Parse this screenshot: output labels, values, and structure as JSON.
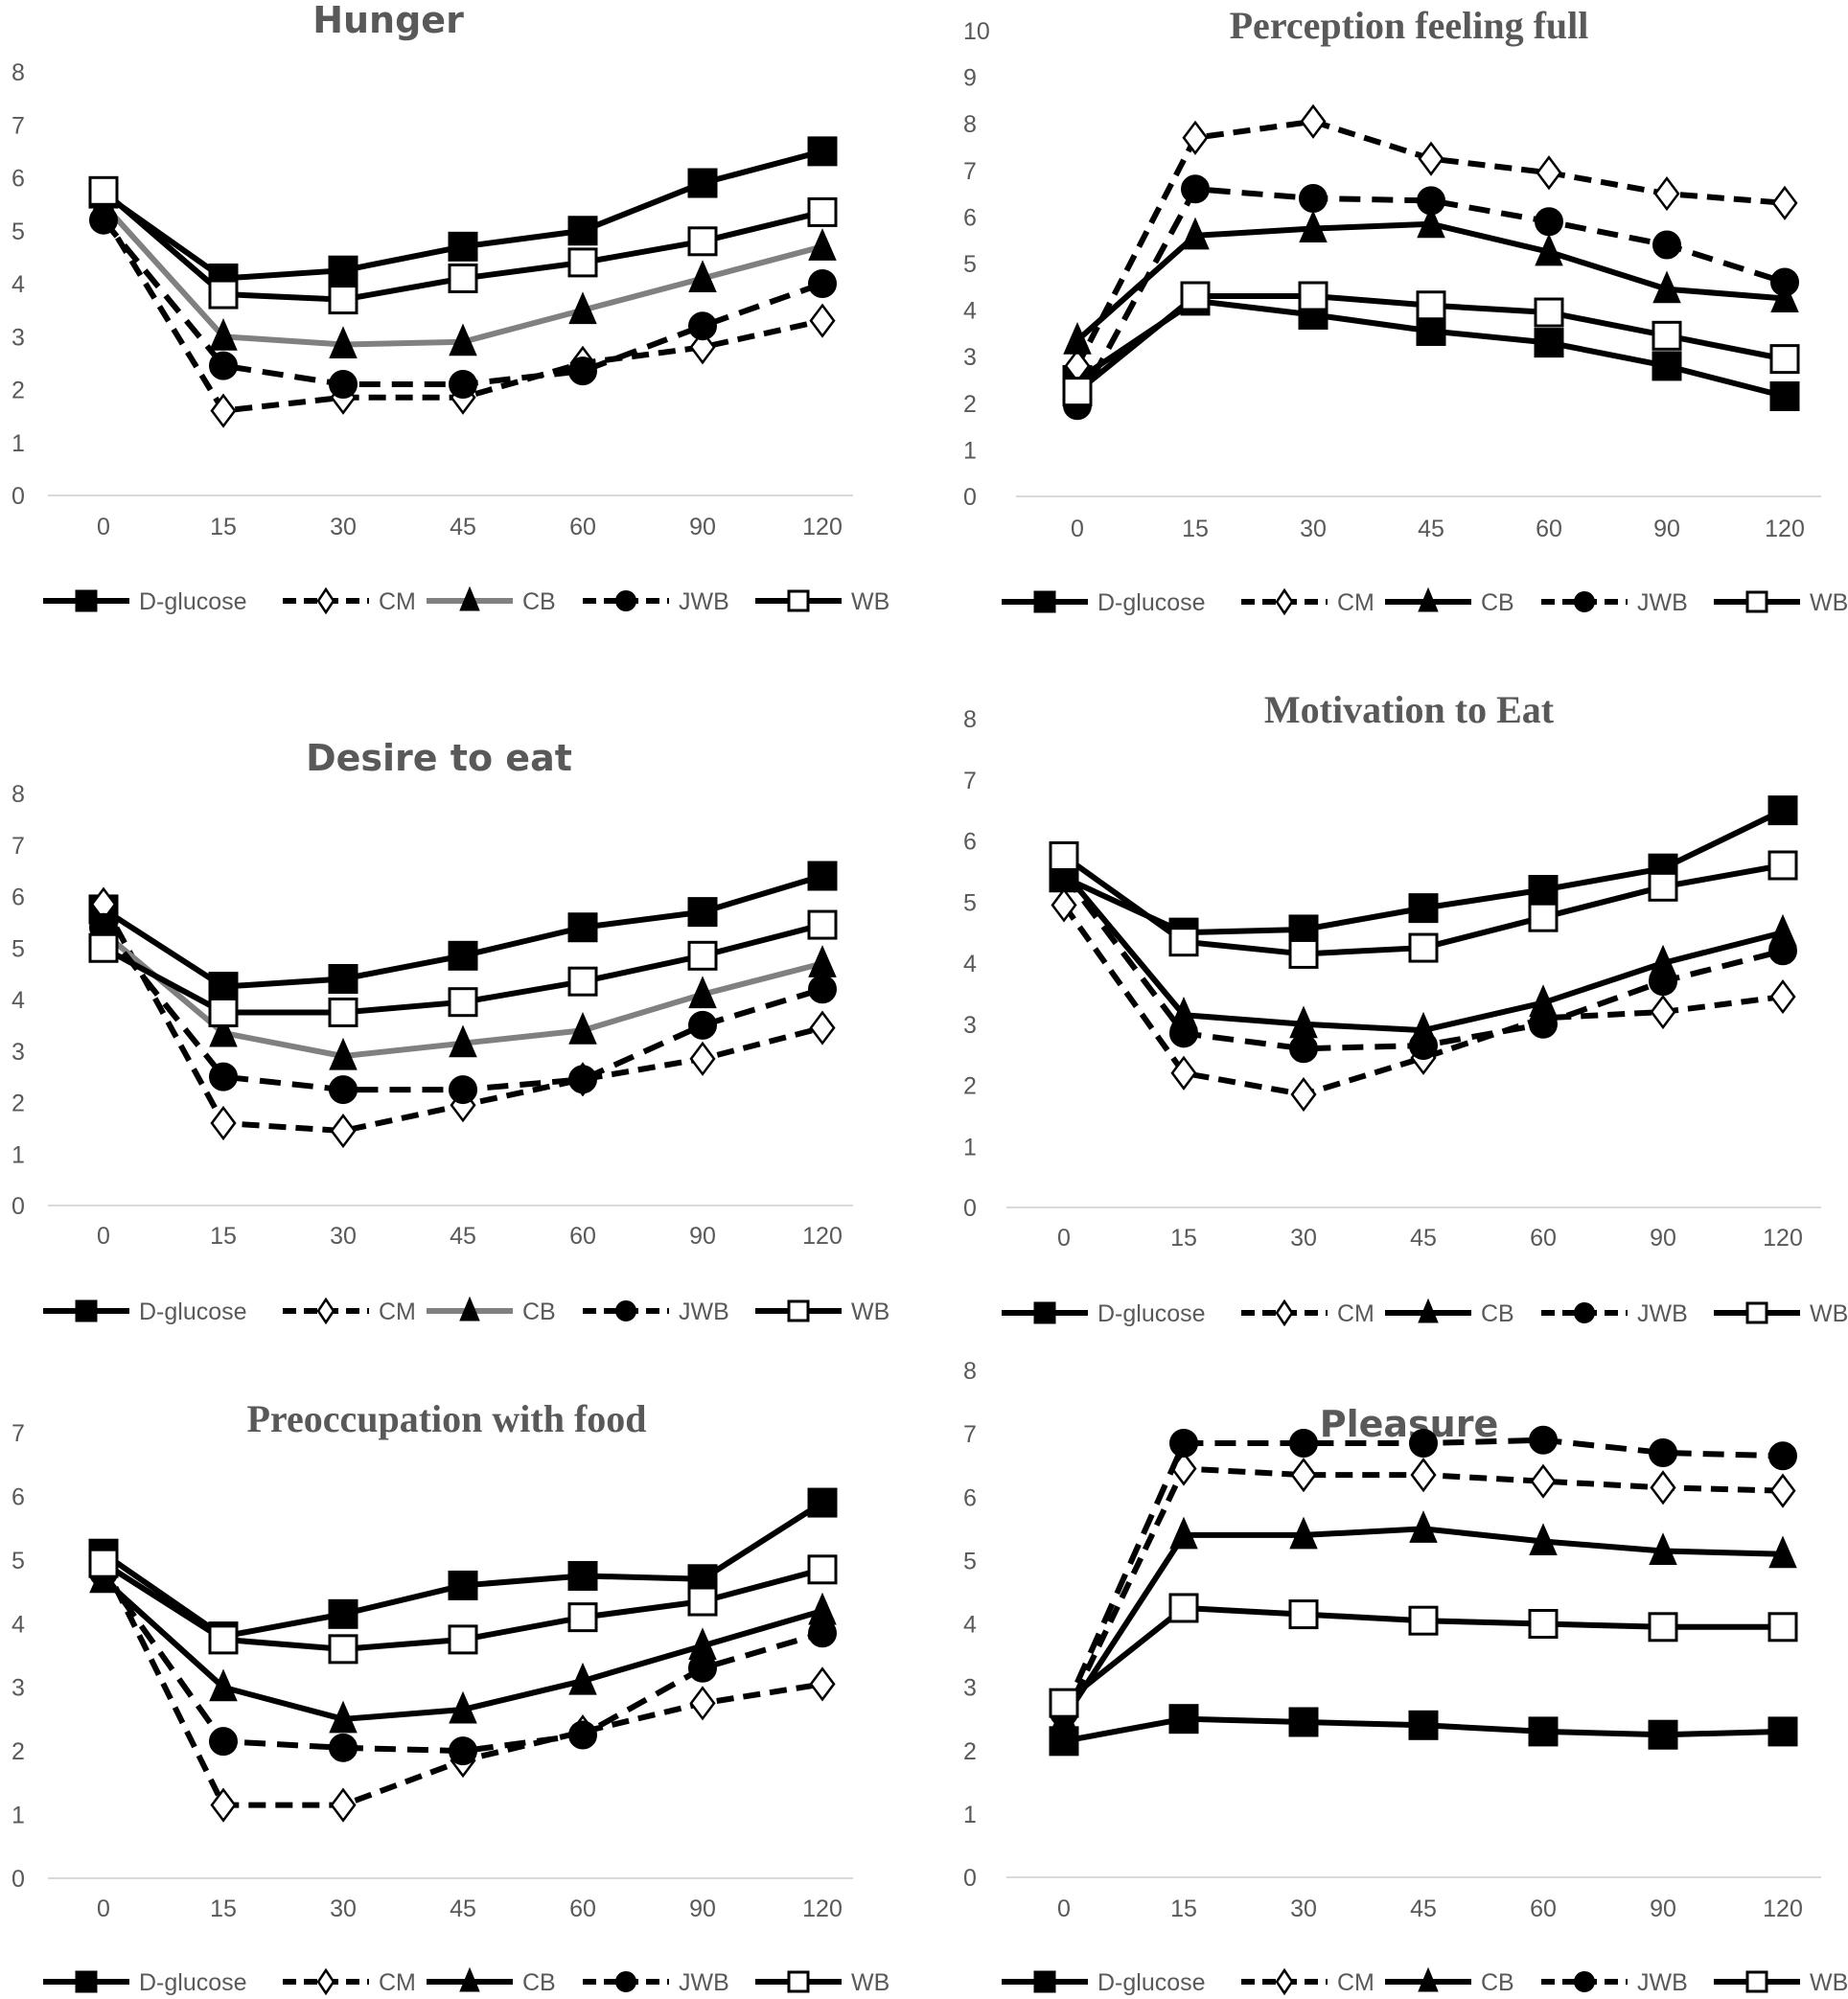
{
  "chart_data": [
    {
      "type": "line",
      "title": "Hunger",
      "categories": [
        "0",
        "15",
        "30",
        "45",
        "60",
        "90",
        "120"
      ],
      "ylim": [
        0,
        8
      ],
      "yticks": [
        0,
        1,
        2,
        3,
        4,
        5,
        6,
        7,
        8
      ],
      "grid": false,
      "legend": "bottom",
      "cb_color": "#808080",
      "series": [
        {
          "name": "D-glucose",
          "values": [
            5.7,
            4.1,
            4.25,
            4.7,
            5.0,
            5.9,
            6.5
          ]
        },
        {
          "name": "CM",
          "values": [
            5.3,
            1.6,
            1.85,
            1.85,
            2.5,
            2.8,
            3.3
          ]
        },
        {
          "name": "CB",
          "values": [
            5.5,
            3.0,
            2.85,
            2.9,
            3.5,
            4.1,
            4.7
          ]
        },
        {
          "name": "JWB",
          "values": [
            5.2,
            2.45,
            2.1,
            2.1,
            2.35,
            3.2,
            4.0
          ]
        },
        {
          "name": "WB",
          "values": [
            5.75,
            3.8,
            3.7,
            4.1,
            4.4,
            4.8,
            5.35
          ]
        }
      ]
    },
    {
      "type": "line",
      "title": "Perception feeling full",
      "categories": [
        "0",
        "15",
        "30",
        "45",
        "60",
        "90",
        "120"
      ],
      "ylim": [
        0,
        10
      ],
      "yticks": [
        0,
        1,
        2,
        3,
        4,
        5,
        6,
        7,
        8,
        9,
        10
      ],
      "grid": false,
      "legend": "bottom",
      "cb_color": "#000000",
      "series": [
        {
          "name": "D-glucose",
          "values": [
            2.5,
            4.2,
            3.9,
            3.55,
            3.3,
            2.8,
            2.15
          ]
        },
        {
          "name": "CM",
          "values": [
            2.8,
            7.7,
            8.05,
            7.25,
            6.95,
            6.5,
            6.3
          ]
        },
        {
          "name": "CB",
          "values": [
            3.35,
            5.6,
            5.75,
            5.85,
            5.25,
            4.45,
            4.25
          ]
        },
        {
          "name": "JWB",
          "values": [
            1.95,
            6.6,
            6.4,
            6.35,
            5.9,
            5.4,
            4.6
          ]
        },
        {
          "name": "WB",
          "values": [
            2.25,
            4.3,
            4.3,
            4.1,
            3.95,
            3.45,
            2.95
          ]
        }
      ]
    },
    {
      "type": "line",
      "title": "Desire to eat",
      "categories": [
        "0",
        "15",
        "30",
        "45",
        "60",
        "90",
        "120"
      ],
      "ylim": [
        0,
        8
      ],
      "yticks": [
        0,
        1,
        2,
        3,
        4,
        5,
        6,
        7,
        8
      ],
      "grid": false,
      "legend": "bottom",
      "cb_color": "#808080",
      "series": [
        {
          "name": "D-glucose",
          "values": [
            5.75,
            4.25,
            4.4,
            4.85,
            5.4,
            5.7,
            6.4
          ]
        },
        {
          "name": "CM",
          "values": [
            5.85,
            1.6,
            1.45,
            1.95,
            2.45,
            2.85,
            3.45
          ]
        },
        {
          "name": "CB",
          "values": [
            5.3,
            3.35,
            2.9,
            3.15,
            3.4,
            4.1,
            4.7
          ]
        },
        {
          "name": "JWB",
          "values": [
            5.4,
            2.5,
            2.25,
            2.25,
            2.45,
            3.5,
            4.2
          ]
        },
        {
          "name": "WB",
          "values": [
            5.0,
            3.75,
            3.75,
            3.95,
            4.35,
            4.85,
            5.45
          ]
        }
      ]
    },
    {
      "type": "line",
      "title": "Motivation to Eat",
      "categories": [
        "0",
        "15",
        "30",
        "45",
        "60",
        "90",
        "120"
      ],
      "ylim": [
        0,
        8
      ],
      "yticks": [
        0,
        1,
        2,
        3,
        4,
        5,
        6,
        7,
        8
      ],
      "grid": false,
      "legend": "bottom",
      "cb_color": "#000000",
      "series": [
        {
          "name": "D-glucose",
          "values": [
            5.4,
            4.5,
            4.55,
            4.9,
            5.2,
            5.55,
            6.5
          ]
        },
        {
          "name": "CM",
          "values": [
            4.95,
            2.2,
            1.85,
            2.45,
            3.1,
            3.2,
            3.45
          ]
        },
        {
          "name": "CB",
          "values": [
            5.5,
            3.15,
            3.0,
            2.9,
            3.35,
            4.0,
            4.5
          ]
        },
        {
          "name": "JWB",
          "values": [
            5.45,
            2.85,
            2.6,
            2.65,
            3.0,
            3.7,
            4.2
          ]
        },
        {
          "name": "WB",
          "values": [
            5.75,
            4.35,
            4.15,
            4.25,
            4.75,
            5.25,
            5.6
          ]
        }
      ]
    },
    {
      "type": "line",
      "title": "Preoccupation with food",
      "categories": [
        "0",
        "15",
        "30",
        "45",
        "60",
        "90",
        "120"
      ],
      "ylim": [
        0,
        7
      ],
      "yticks": [
        0,
        1,
        2,
        3,
        4,
        5,
        6,
        7
      ],
      "grid": false,
      "legend": "bottom",
      "cb_color": "#000000",
      "series": [
        {
          "name": "D-glucose",
          "values": [
            5.1,
            3.8,
            4.15,
            4.6,
            4.75,
            4.7,
            5.9
          ]
        },
        {
          "name": "CM",
          "values": [
            4.95,
            1.15,
            1.15,
            1.85,
            2.3,
            2.75,
            3.05
          ]
        },
        {
          "name": "CB",
          "values": [
            4.7,
            3.0,
            2.5,
            2.65,
            3.1,
            3.65,
            4.2
          ]
        },
        {
          "name": "JWB",
          "values": [
            4.8,
            2.15,
            2.05,
            2.0,
            2.25,
            3.3,
            3.85
          ]
        },
        {
          "name": "WB",
          "values": [
            4.95,
            3.75,
            3.6,
            3.75,
            4.1,
            4.35,
            4.85
          ]
        }
      ]
    },
    {
      "type": "line",
      "title": "Pleasure",
      "categories": [
        "0",
        "15",
        "30",
        "45",
        "60",
        "90",
        "120"
      ],
      "ylim": [
        0,
        8
      ],
      "yticks": [
        0,
        1,
        2,
        3,
        4,
        5,
        6,
        7,
        8
      ],
      "grid": false,
      "legend": "bottom",
      "cb_color": "#000000",
      "series": [
        {
          "name": "D-glucose",
          "values": [
            2.15,
            2.5,
            2.45,
            2.4,
            2.3,
            2.25,
            2.3
          ]
        },
        {
          "name": "CM",
          "values": [
            2.5,
            6.45,
            6.35,
            6.35,
            6.25,
            6.15,
            6.1
          ]
        },
        {
          "name": "CB",
          "values": [
            2.5,
            5.4,
            5.4,
            5.5,
            5.3,
            5.15,
            5.1
          ]
        },
        {
          "name": "JWB",
          "values": [
            2.6,
            6.85,
            6.85,
            6.85,
            6.9,
            6.7,
            6.65
          ]
        },
        {
          "name": "WB",
          "values": [
            2.75,
            4.25,
            4.15,
            4.05,
            4.0,
            3.95,
            3.95
          ]
        }
      ]
    }
  ]
}
